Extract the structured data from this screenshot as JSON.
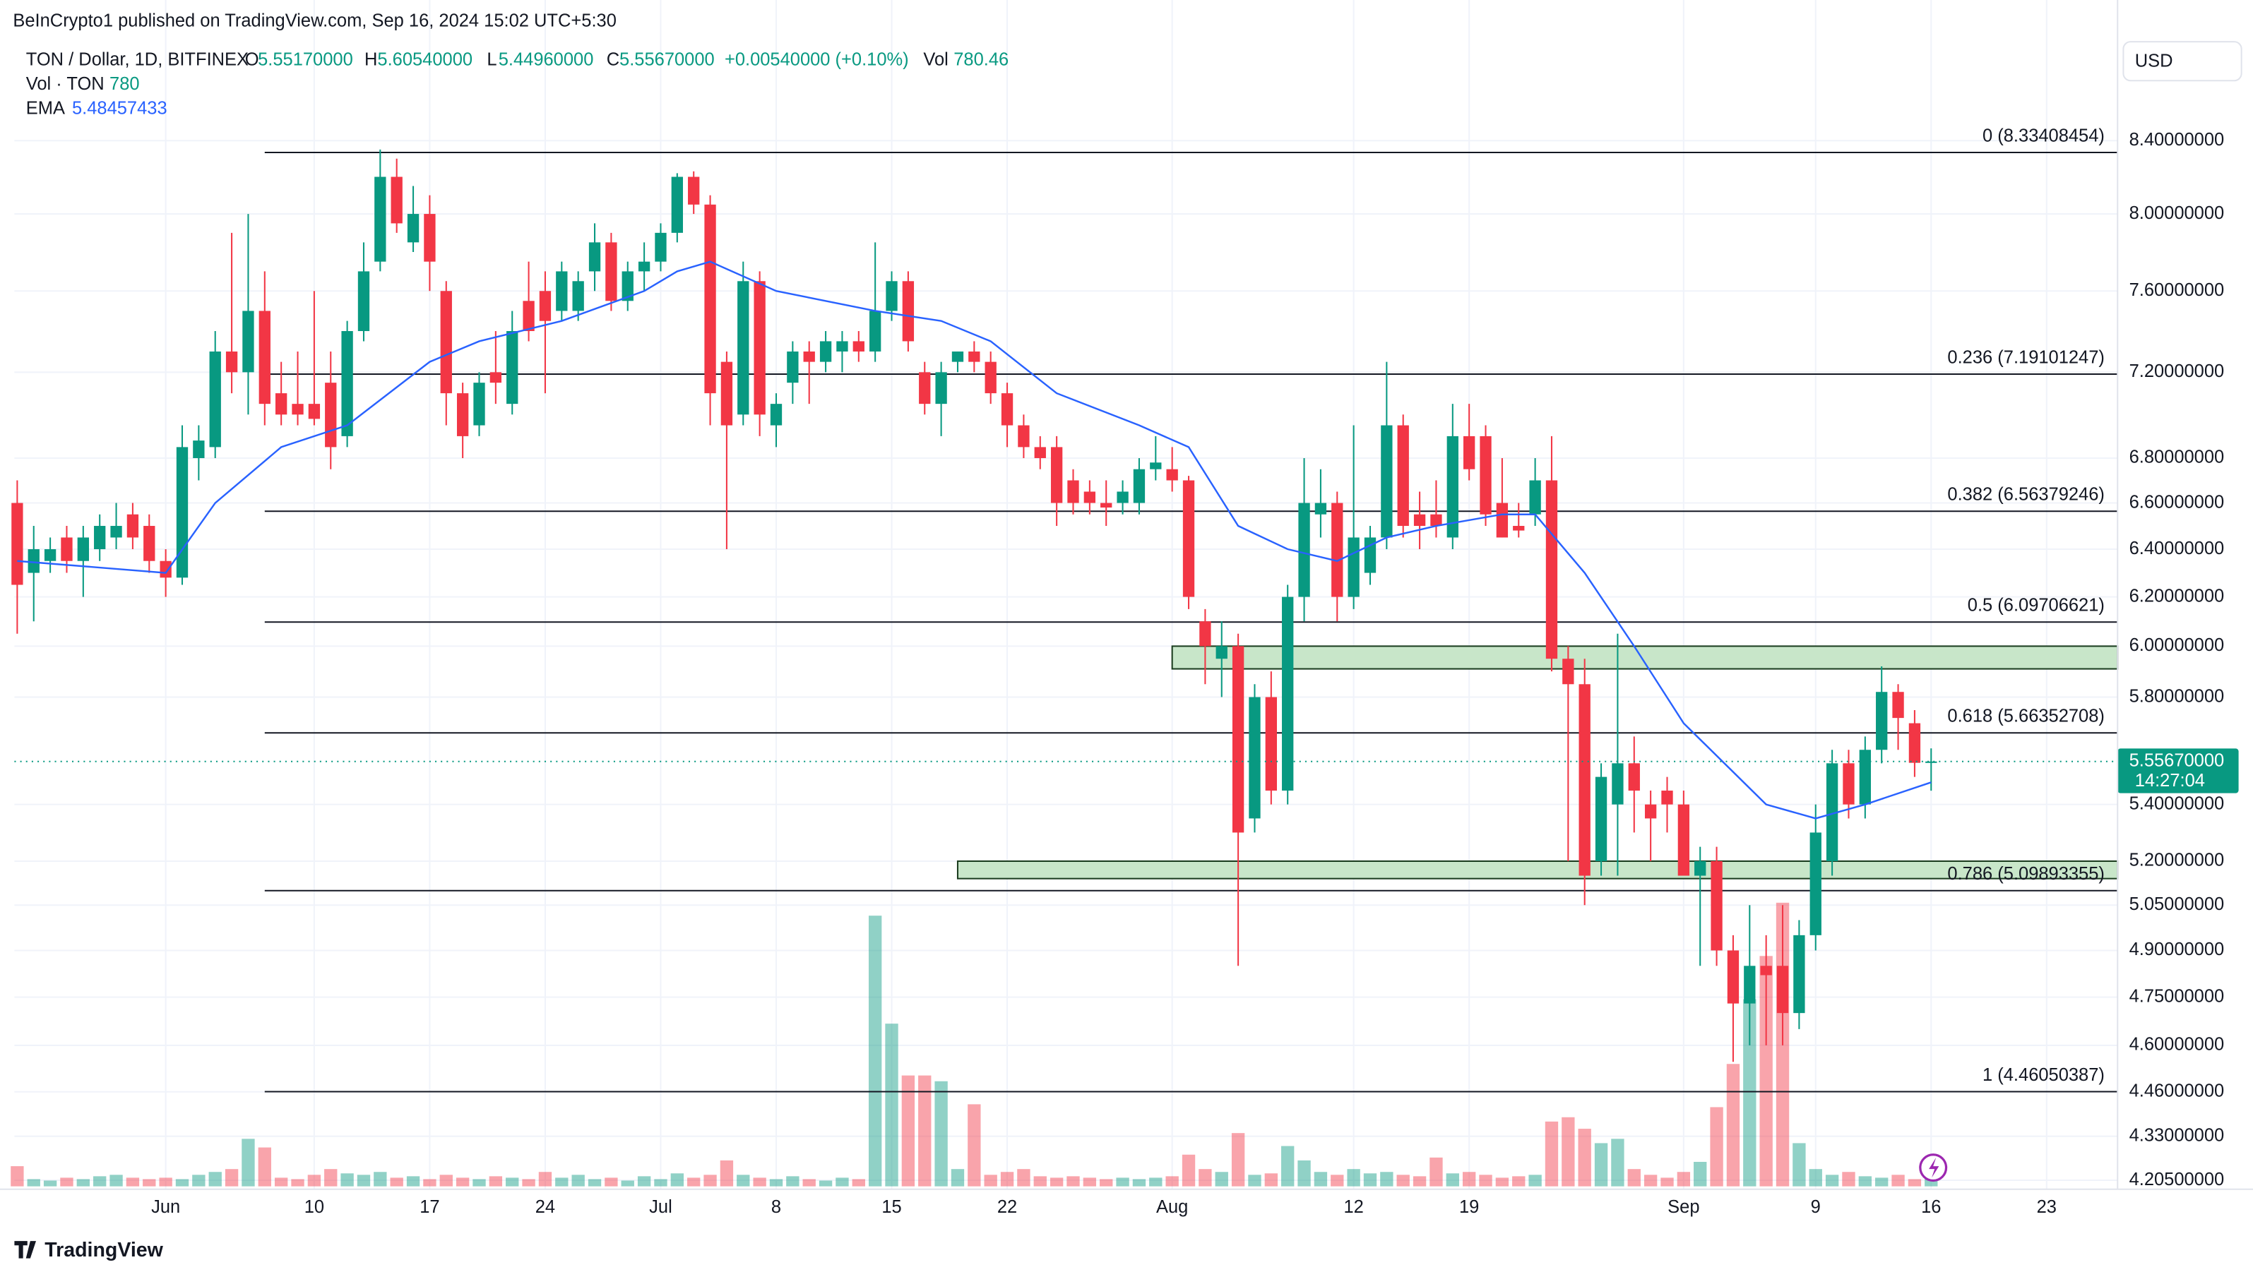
{
  "header": {
    "published": "BeInCrypto1 published on TradingView.com, Sep 16, 2024 15:02 UTC+5:30",
    "symbol": "TON / Dollar, 1D, BITFINEX",
    "ohlc_legend": [
      [
        "O",
        "5.55170000"
      ],
      [
        "H",
        "5.60540000"
      ],
      [
        "L",
        "5.44960000"
      ],
      [
        "C",
        "5.55670000"
      ]
    ],
    "change": "+0.00540000 (+0.10%)",
    "vol_label": "Vol",
    "vol_value": "780.46"
  },
  "indicators": [
    {
      "name": "Vol · TON",
      "value": "780"
    },
    {
      "name": "EMA",
      "value": "5.48457433"
    }
  ],
  "currency": "USD",
  "brand": "TradingView",
  "chart_data": {
    "type": "candlestick",
    "log": true,
    "grid": true,
    "up_color": "#089981",
    "down_color": "#f23645",
    "ylim": [
      4.18,
      8.98
    ],
    "yticks": [
      {
        "value": 8.4,
        "label": "8.40000000"
      },
      {
        "value": 8.0,
        "label": "8.00000000"
      },
      {
        "value": 7.6,
        "label": "7.60000000"
      },
      {
        "value": 7.2,
        "label": "7.20000000"
      },
      {
        "value": 6.8,
        "label": "6.80000000"
      },
      {
        "value": 6.6,
        "label": "6.60000000"
      },
      {
        "value": 6.4,
        "label": "6.40000000"
      },
      {
        "value": 6.2,
        "label": "6.20000000"
      },
      {
        "value": 6.0,
        "label": "6.00000000"
      },
      {
        "value": 5.8,
        "label": "5.80000000"
      },
      {
        "value": 5.4,
        "label": "5.40000000"
      },
      {
        "value": 5.2,
        "label": "5.20000000"
      },
      {
        "value": 5.05,
        "label": "5.05000000"
      },
      {
        "value": 4.9,
        "label": "4.90000000"
      },
      {
        "value": 4.75,
        "label": "4.75000000"
      },
      {
        "value": 4.6,
        "label": "4.60000000"
      },
      {
        "value": 4.46,
        "label": "4.46000000"
      },
      {
        "value": 4.33,
        "label": "4.33000000"
      },
      {
        "value": 4.205,
        "label": "4.20500000"
      }
    ],
    "xlim": [
      -0.17,
      127.3
    ],
    "xticks": [
      {
        "value": 9,
        "label": "Jun"
      },
      {
        "value": 18,
        "label": "10"
      },
      {
        "value": 25,
        "label": "17"
      },
      {
        "value": 32,
        "label": "24"
      },
      {
        "value": 39,
        "label": "Jul"
      },
      {
        "value": 46,
        "label": "8"
      },
      {
        "value": 53,
        "label": "15"
      },
      {
        "value": 60,
        "label": "22"
      },
      {
        "value": 70,
        "label": "Aug"
      },
      {
        "value": 81,
        "label": "12"
      },
      {
        "value": 88,
        "label": "19"
      },
      {
        "value": 101,
        "label": "Sep"
      },
      {
        "value": 109,
        "label": "9"
      },
      {
        "value": 116,
        "label": "16"
      },
      {
        "value": 123,
        "label": "23"
      }
    ],
    "ohlc": [
      [
        6.6,
        6.7,
        6.05,
        6.25
      ],
      [
        6.3,
        6.5,
        6.1,
        6.4
      ],
      [
        6.35,
        6.45,
        6.3,
        6.4
      ],
      [
        6.45,
        6.5,
        6.3,
        6.35
      ],
      [
        6.35,
        6.5,
        6.2,
        6.45
      ],
      [
        6.4,
        6.55,
        6.35,
        6.5
      ],
      [
        6.45,
        6.6,
        6.4,
        6.5
      ],
      [
        6.55,
        6.6,
        6.4,
        6.45
      ],
      [
        6.5,
        6.55,
        6.3,
        6.35
      ],
      [
        6.35,
        6.4,
        6.2,
        6.28
      ],
      [
        6.28,
        6.95,
        6.25,
        6.85
      ],
      [
        6.8,
        6.95,
        6.7,
        6.88
      ],
      [
        6.85,
        7.4,
        6.8,
        7.3
      ],
      [
        7.3,
        7.9,
        7.1,
        7.2
      ],
      [
        7.2,
        8.0,
        7.0,
        7.5
      ],
      [
        7.5,
        7.7,
        6.95,
        7.05
      ],
      [
        7.1,
        7.25,
        6.95,
        7.0
      ],
      [
        7.05,
        7.3,
        6.95,
        7.0
      ],
      [
        7.05,
        7.6,
        6.95,
        6.98
      ],
      [
        7.15,
        7.3,
        6.75,
        6.85
      ],
      [
        6.9,
        7.45,
        6.85,
        7.4
      ],
      [
        7.4,
        7.85,
        7.35,
        7.7
      ],
      [
        7.75,
        8.35,
        7.7,
        8.2
      ],
      [
        8.2,
        8.3,
        7.9,
        7.95
      ],
      [
        7.85,
        8.15,
        7.8,
        8.0
      ],
      [
        8.0,
        8.1,
        7.6,
        7.75
      ],
      [
        7.6,
        7.65,
        6.95,
        7.1
      ],
      [
        7.1,
        7.15,
        6.8,
        6.9
      ],
      [
        6.95,
        7.2,
        6.9,
        7.15
      ],
      [
        7.2,
        7.4,
        7.05,
        7.15
      ],
      [
        7.05,
        7.5,
        7.0,
        7.4
      ],
      [
        7.55,
        7.75,
        7.35,
        7.4
      ],
      [
        7.6,
        7.7,
        7.1,
        7.45
      ],
      [
        7.5,
        7.75,
        7.45,
        7.7
      ],
      [
        7.5,
        7.7,
        7.45,
        7.65
      ],
      [
        7.7,
        7.95,
        7.6,
        7.85
      ],
      [
        7.85,
        7.9,
        7.5,
        7.55
      ],
      [
        7.55,
        7.75,
        7.5,
        7.7
      ],
      [
        7.7,
        7.85,
        7.6,
        7.75
      ],
      [
        7.75,
        7.95,
        7.7,
        7.9
      ],
      [
        7.9,
        8.22,
        7.85,
        8.2
      ],
      [
        8.2,
        8.23,
        8.0,
        8.05
      ],
      [
        8.05,
        8.1,
        6.95,
        7.1
      ],
      [
        7.25,
        7.3,
        6.4,
        6.95
      ],
      [
        7.0,
        7.75,
        6.95,
        7.65
      ],
      [
        7.65,
        7.7,
        6.9,
        7.0
      ],
      [
        6.95,
        7.1,
        6.85,
        7.05
      ],
      [
        7.15,
        7.35,
        7.05,
        7.3
      ],
      [
        7.3,
        7.35,
        7.05,
        7.25
      ],
      [
        7.25,
        7.4,
        7.2,
        7.35
      ],
      [
        7.3,
        7.4,
        7.2,
        7.35
      ],
      [
        7.35,
        7.4,
        7.25,
        7.3
      ],
      [
        7.3,
        7.85,
        7.25,
        7.5
      ],
      [
        7.5,
        7.7,
        7.45,
        7.65
      ],
      [
        7.65,
        7.7,
        7.3,
        7.35
      ],
      [
        7.2,
        7.25,
        7.0,
        7.05
      ],
      [
        7.05,
        7.25,
        6.9,
        7.2
      ],
      [
        7.25,
        7.3,
        7.2,
        7.3
      ],
      [
        7.3,
        7.35,
        7.2,
        7.25
      ],
      [
        7.25,
        7.3,
        7.05,
        7.1
      ],
      [
        7.1,
        7.15,
        6.85,
        6.95
      ],
      [
        6.95,
        7.0,
        6.8,
        6.85
      ],
      [
        6.85,
        6.9,
        6.75,
        6.8
      ],
      [
        6.85,
        6.9,
        6.5,
        6.6
      ],
      [
        6.7,
        6.75,
        6.55,
        6.6
      ],
      [
        6.65,
        6.7,
        6.55,
        6.6
      ],
      [
        6.6,
        6.7,
        6.5,
        6.58
      ],
      [
        6.6,
        6.7,
        6.55,
        6.65
      ],
      [
        6.6,
        6.8,
        6.55,
        6.75
      ],
      [
        6.75,
        6.9,
        6.7,
        6.78
      ],
      [
        6.75,
        6.85,
        6.65,
        6.7
      ],
      [
        6.7,
        6.72,
        6.15,
        6.2
      ],
      [
        6.1,
        6.15,
        5.85,
        6.0
      ],
      [
        5.95,
        6.1,
        5.8,
        6.0
      ],
      [
        6.0,
        6.05,
        4.85,
        5.3
      ],
      [
        5.35,
        5.85,
        5.3,
        5.8
      ],
      [
        5.8,
        5.9,
        5.4,
        5.45
      ],
      [
        5.45,
        6.25,
        5.4,
        6.2
      ],
      [
        6.2,
        6.8,
        6.1,
        6.6
      ],
      [
        6.55,
        6.75,
        6.45,
        6.6
      ],
      [
        6.6,
        6.65,
        6.1,
        6.2
      ],
      [
        6.2,
        6.95,
        6.15,
        6.45
      ],
      [
        6.3,
        6.5,
        6.25,
        6.45
      ],
      [
        6.45,
        7.25,
        6.4,
        6.95
      ],
      [
        6.95,
        7.0,
        6.45,
        6.5
      ],
      [
        6.55,
        6.65,
        6.4,
        6.5
      ],
      [
        6.55,
        6.7,
        6.45,
        6.5
      ],
      [
        6.45,
        7.05,
        6.4,
        6.9
      ],
      [
        6.9,
        7.05,
        6.7,
        6.75
      ],
      [
        6.9,
        6.95,
        6.5,
        6.55
      ],
      [
        6.6,
        6.8,
        6.45,
        6.45
      ],
      [
        6.5,
        6.6,
        6.45,
        6.48
      ],
      [
        6.55,
        6.8,
        6.5,
        6.7
      ],
      [
        6.7,
        6.9,
        5.9,
        5.95
      ],
      [
        5.95,
        6.0,
        5.2,
        5.85
      ],
      [
        5.85,
        5.95,
        5.05,
        5.15
      ],
      [
        5.2,
        5.55,
        5.15,
        5.5
      ],
      [
        5.4,
        6.05,
        5.15,
        5.55
      ],
      [
        5.55,
        5.65,
        5.3,
        5.45
      ],
      [
        5.4,
        5.45,
        5.2,
        5.35
      ],
      [
        5.45,
        5.5,
        5.3,
        5.4
      ],
      [
        5.4,
        5.45,
        5.15,
        5.15
      ],
      [
        5.15,
        5.25,
        4.85,
        5.2
      ],
      [
        5.2,
        5.25,
        4.85,
        4.9
      ],
      [
        4.9,
        4.95,
        4.55,
        4.73
      ],
      [
        4.73,
        5.05,
        4.6,
        4.85
      ],
      [
        4.85,
        4.95,
        4.6,
        4.82
      ],
      [
        4.85,
        5.05,
        4.6,
        4.7
      ],
      [
        4.7,
        5.0,
        4.65,
        4.95
      ],
      [
        4.95,
        5.4,
        4.9,
        5.3
      ],
      [
        5.2,
        5.6,
        5.15,
        5.55
      ],
      [
        5.55,
        5.6,
        5.35,
        5.4
      ],
      [
        5.4,
        5.65,
        5.35,
        5.6
      ],
      [
        5.6,
        5.92,
        5.55,
        5.82
      ],
      [
        5.82,
        5.85,
        5.6,
        5.72
      ],
      [
        5.7,
        5.75,
        5.5,
        5.5517
      ],
      [
        5.5517,
        5.6054,
        5.4496,
        5.5567
      ]
    ],
    "volume_lim": [
      0,
      30000
    ],
    "volume": [
      2100,
      750,
      600,
      900,
      750,
      1050,
      1200,
      900,
      750,
      900,
      750,
      1200,
      1500,
      1800,
      4950,
      4050,
      900,
      750,
      1200,
      1800,
      1350,
      1200,
      1500,
      900,
      1050,
      750,
      1200,
      900,
      750,
      1050,
      900,
      750,
      1500,
      900,
      1200,
      750,
      900,
      600,
      1050,
      750,
      1350,
      900,
      1200,
      2700,
      1200,
      900,
      750,
      1050,
      750,
      600,
      900,
      750,
      28200,
      16950,
      11550,
      11550,
      10950,
      1800,
      8550,
      1200,
      1500,
      1800,
      1050,
      900,
      1050,
      900,
      750,
      900,
      750,
      900,
      1050,
      3300,
      1800,
      1500,
      5550,
      1200,
      1350,
      4200,
      2700,
      1500,
      1200,
      1800,
      1350,
      1500,
      1200,
      1050,
      3000,
      1350,
      1500,
      1200,
      900,
      1050,
      1200,
      6750,
      7200,
      6000,
      4500,
      4950,
      1800,
      1200,
      900,
      1500,
      2550,
      8250,
      12750,
      19500,
      24000,
      29550,
      4500,
      1800,
      1200,
      1500,
      1050,
      900,
      1200,
      750,
      780.46
    ],
    "ema": {
      "color": "#2962ff",
      "x": [
        0,
        9,
        12,
        16,
        20,
        25,
        28,
        33,
        38,
        40,
        42,
        46,
        52,
        56,
        59,
        63,
        68,
        71,
        74,
        77,
        80,
        83,
        86,
        90,
        92,
        95,
        98,
        101,
        106,
        109,
        112,
        116
      ],
      "values": [
        6.35,
        6.3,
        6.6,
        6.85,
        6.95,
        7.25,
        7.35,
        7.45,
        7.6,
        7.7,
        7.75,
        7.6,
        7.5,
        7.45,
        7.35,
        7.1,
        6.95,
        6.85,
        6.5,
        6.4,
        6.35,
        6.45,
        6.5,
        6.55,
        6.55,
        6.3,
        6.0,
        5.7,
        5.4,
        5.35,
        5.4,
        5.48
      ]
    },
    "fib_start": 15,
    "fib_levels": [
      {
        "label": "0 (8.33408454)",
        "value": 8.33408454
      },
      {
        "label": "0.236 (7.19101247)",
        "value": 7.19101247
      },
      {
        "label": "0.382 (6.56379246)",
        "value": 6.56379246
      },
      {
        "label": "0.5 (6.09706621)",
        "value": 6.09706621
      },
      {
        "label": "0.618 (5.66352708)",
        "value": 5.66352708
      },
      {
        "label": "0.786 (5.09893355)",
        "value": 5.09893355
      },
      {
        "label": "1 (4.46050387)",
        "value": 4.46050387
      }
    ],
    "zones": [
      {
        "x": 70,
        "low": 5.91,
        "high": 6.0
      },
      {
        "x": 57,
        "low": 5.14,
        "high": 5.2
      }
    ],
    "price_label": "5.55670000",
    "countdown": "14:27:04"
  }
}
